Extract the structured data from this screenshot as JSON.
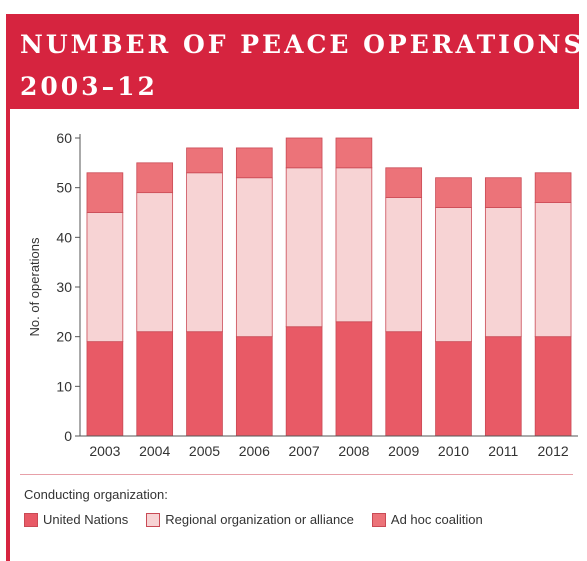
{
  "title": {
    "line1": "NUMBER OF PEACE OPERATIONS,",
    "line2": "2003–12"
  },
  "colors": {
    "banner": "#d6243f",
    "un": "#e85a66",
    "regional": "#f7d3d4",
    "adhoc": "#ec7379",
    "bar_edge": "#c94a55"
  },
  "chart_data": {
    "type": "bar",
    "stacked": true,
    "title": "NUMBER OF PEACE OPERATIONS, 2003–12",
    "xlabel": "",
    "ylabel": "No. of operations",
    "ylim": [
      0,
      60
    ],
    "yticks": [
      0,
      10,
      20,
      30,
      40,
      50,
      60
    ],
    "categories": [
      "2003",
      "2004",
      "2005",
      "2006",
      "2007",
      "2008",
      "2009",
      "2010",
      "2011",
      "2012"
    ],
    "series": [
      {
        "name": "United Nations",
        "color": "#e85a66",
        "values": [
          19,
          21,
          21,
          20,
          22,
          23,
          21,
          19,
          20,
          20
        ]
      },
      {
        "name": "Regional organization or alliance",
        "color": "#f7d3d4",
        "values": [
          26,
          28,
          32,
          32,
          32,
          31,
          27,
          27,
          26,
          27
        ]
      },
      {
        "name": "Ad hoc coalition",
        "color": "#ec7379",
        "values": [
          8,
          6,
          5,
          6,
          6,
          6,
          6,
          6,
          6,
          6
        ]
      }
    ],
    "grid": false,
    "legend_position": "bottom"
  },
  "legend": {
    "title": "Conducting organization:",
    "items": [
      {
        "label": "United Nations",
        "color": "#e85a66"
      },
      {
        "label": "Regional organization or alliance",
        "color": "#f7d3d4"
      },
      {
        "label": "Ad hoc coalition",
        "color": "#ec7379"
      }
    ]
  }
}
